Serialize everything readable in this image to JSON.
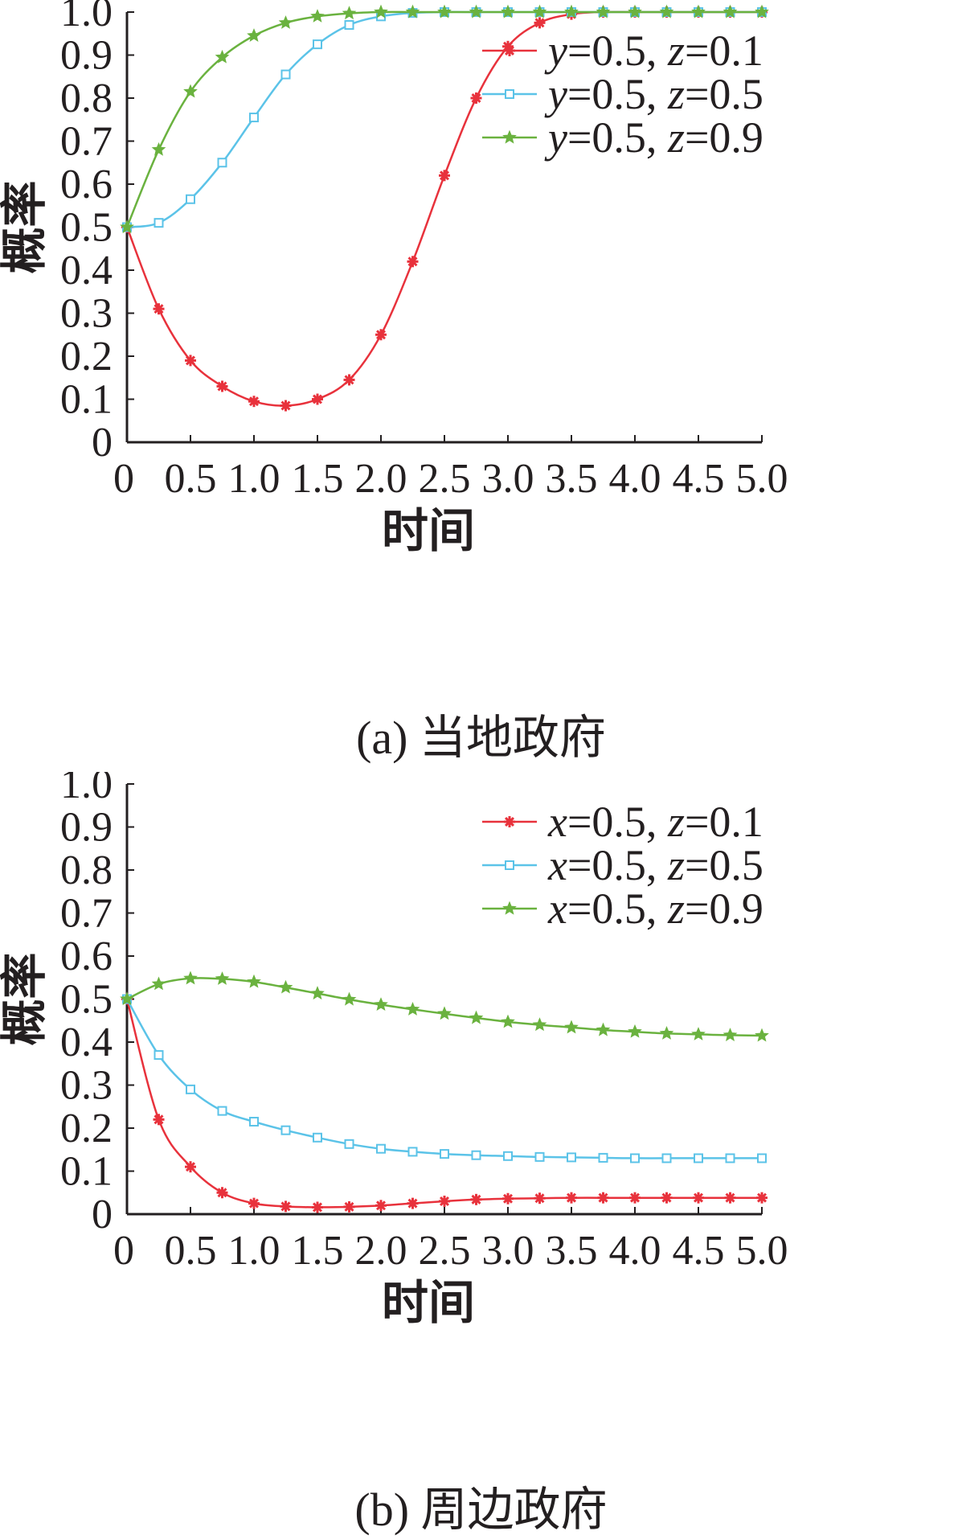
{
  "chart_data": [
    {
      "type": "line",
      "panel": "a",
      "caption": "(a) 当地政府",
      "xlabel": "时间",
      "ylabel": "概率",
      "xlim": [
        0,
        5.0
      ],
      "ylim": [
        0,
        1.0
      ],
      "x_ticks": [
        "0",
        "0.5",
        "1.0",
        "1.5",
        "2.0",
        "2.5",
        "3.0",
        "3.5",
        "4.0",
        "4.5",
        "5.0"
      ],
      "y_ticks": [
        "0",
        "0.1",
        "0.2",
        "0.3",
        "0.4",
        "0.5",
        "0.6",
        "0.7",
        "0.8",
        "0.9",
        "1.0"
      ],
      "legend_position": "top-right",
      "grid": false,
      "series": [
        {
          "legend_var": "y",
          "legend_rest": "=0.5, ",
          "legend_var2": "z",
          "legend_rest2": "=0.1",
          "color": "#e8323c",
          "marker": "asterisk",
          "x": [
            0,
            0.25,
            0.5,
            0.75,
            1.0,
            1.25,
            1.5,
            1.75,
            2.0,
            2.25,
            2.5,
            2.75,
            3.0,
            3.25,
            3.5,
            3.75,
            4.0,
            4.25,
            4.5,
            4.75,
            5.0
          ],
          "y": [
            0.5,
            0.31,
            0.19,
            0.13,
            0.095,
            0.085,
            0.1,
            0.145,
            0.25,
            0.42,
            0.62,
            0.8,
            0.92,
            0.975,
            0.995,
            1.0,
            1.0,
            1.0,
            1.0,
            1.0,
            1.0
          ]
        },
        {
          "legend_var": "y",
          "legend_rest": "=0.5, ",
          "legend_var2": "z",
          "legend_rest2": "=0.5",
          "color": "#5bc3e8",
          "marker": "square",
          "x": [
            0,
            0.25,
            0.5,
            0.75,
            1.0,
            1.25,
            1.5,
            1.75,
            2.0,
            2.25,
            2.5,
            2.75,
            3.0,
            3.25,
            3.5,
            3.75,
            4.0,
            4.25,
            4.5,
            4.75,
            5.0
          ],
          "y": [
            0.5,
            0.51,
            0.565,
            0.65,
            0.755,
            0.855,
            0.925,
            0.97,
            0.99,
            0.998,
            1.0,
            1.0,
            1.0,
            1.0,
            1.0,
            1.0,
            1.0,
            1.0,
            1.0,
            1.0,
            1.0
          ]
        },
        {
          "legend_var": "y",
          "legend_rest": "=0.5, ",
          "legend_var2": "z",
          "legend_rest2": "=0.9",
          "color": "#6ab23f",
          "marker": "star",
          "x": [
            0,
            0.25,
            0.5,
            0.75,
            1.0,
            1.25,
            1.5,
            1.75,
            2.0,
            2.25,
            2.5,
            2.75,
            3.0,
            3.25,
            3.5,
            3.75,
            4.0,
            4.25,
            4.5,
            4.75,
            5.0
          ],
          "y": [
            0.5,
            0.68,
            0.815,
            0.895,
            0.945,
            0.975,
            0.99,
            0.997,
            1.0,
            1.0,
            1.0,
            1.0,
            1.0,
            1.0,
            1.0,
            1.0,
            1.0,
            1.0,
            1.0,
            1.0,
            1.0
          ]
        }
      ]
    },
    {
      "type": "line",
      "panel": "b",
      "caption": "(b) 周边政府",
      "xlabel": "时间",
      "ylabel": "概率",
      "xlim": [
        0,
        5.0
      ],
      "ylim": [
        0,
        1.0
      ],
      "x_ticks": [
        "0",
        "0.5",
        "1.0",
        "1.5",
        "2.0",
        "2.5",
        "3.0",
        "3.5",
        "4.0",
        "4.5",
        "5.0"
      ],
      "y_ticks": [
        "0",
        "0.1",
        "0.2",
        "0.3",
        "0.4",
        "0.5",
        "0.6",
        "0.7",
        "0.8",
        "0.9",
        "1.0"
      ],
      "legend_position": "top-right",
      "grid": false,
      "series": [
        {
          "legend_var": "x",
          "legend_rest": "=0.5, ",
          "legend_var2": "z",
          "legend_rest2": "=0.1",
          "color": "#e8323c",
          "marker": "asterisk",
          "x": [
            0,
            0.25,
            0.5,
            0.75,
            1.0,
            1.25,
            1.5,
            1.75,
            2.0,
            2.25,
            2.5,
            2.75,
            3.0,
            3.25,
            3.5,
            3.75,
            4.0,
            4.25,
            4.5,
            4.75,
            5.0
          ],
          "y": [
            0.5,
            0.22,
            0.11,
            0.05,
            0.025,
            0.018,
            0.016,
            0.017,
            0.02,
            0.025,
            0.03,
            0.034,
            0.036,
            0.037,
            0.038,
            0.038,
            0.038,
            0.038,
            0.038,
            0.038,
            0.038
          ]
        },
        {
          "legend_var": "x",
          "legend_rest": "=0.5, ",
          "legend_var2": "z",
          "legend_rest2": "=0.5",
          "color": "#5bc3e8",
          "marker": "square",
          "x": [
            0,
            0.25,
            0.5,
            0.75,
            1.0,
            1.25,
            1.5,
            1.75,
            2.0,
            2.25,
            2.5,
            2.75,
            3.0,
            3.25,
            3.5,
            3.75,
            4.0,
            4.25,
            4.5,
            4.75,
            5.0
          ],
          "y": [
            0.5,
            0.37,
            0.29,
            0.24,
            0.215,
            0.195,
            0.178,
            0.163,
            0.152,
            0.145,
            0.14,
            0.137,
            0.135,
            0.133,
            0.132,
            0.131,
            0.13,
            0.13,
            0.13,
            0.13,
            0.13
          ]
        },
        {
          "legend_var": "x",
          "legend_rest": "=0.5, ",
          "legend_var2": "z",
          "legend_rest2": "=0.9",
          "color": "#6ab23f",
          "marker": "star",
          "x": [
            0,
            0.25,
            0.5,
            0.75,
            1.0,
            1.25,
            1.5,
            1.75,
            2.0,
            2.25,
            2.5,
            2.75,
            3.0,
            3.25,
            3.5,
            3.75,
            4.0,
            4.25,
            4.5,
            4.75,
            5.0
          ],
          "y": [
            0.5,
            0.535,
            0.548,
            0.547,
            0.54,
            0.527,
            0.513,
            0.499,
            0.487,
            0.476,
            0.466,
            0.456,
            0.447,
            0.44,
            0.434,
            0.428,
            0.424,
            0.42,
            0.418,
            0.416,
            0.415
          ]
        }
      ]
    }
  ]
}
